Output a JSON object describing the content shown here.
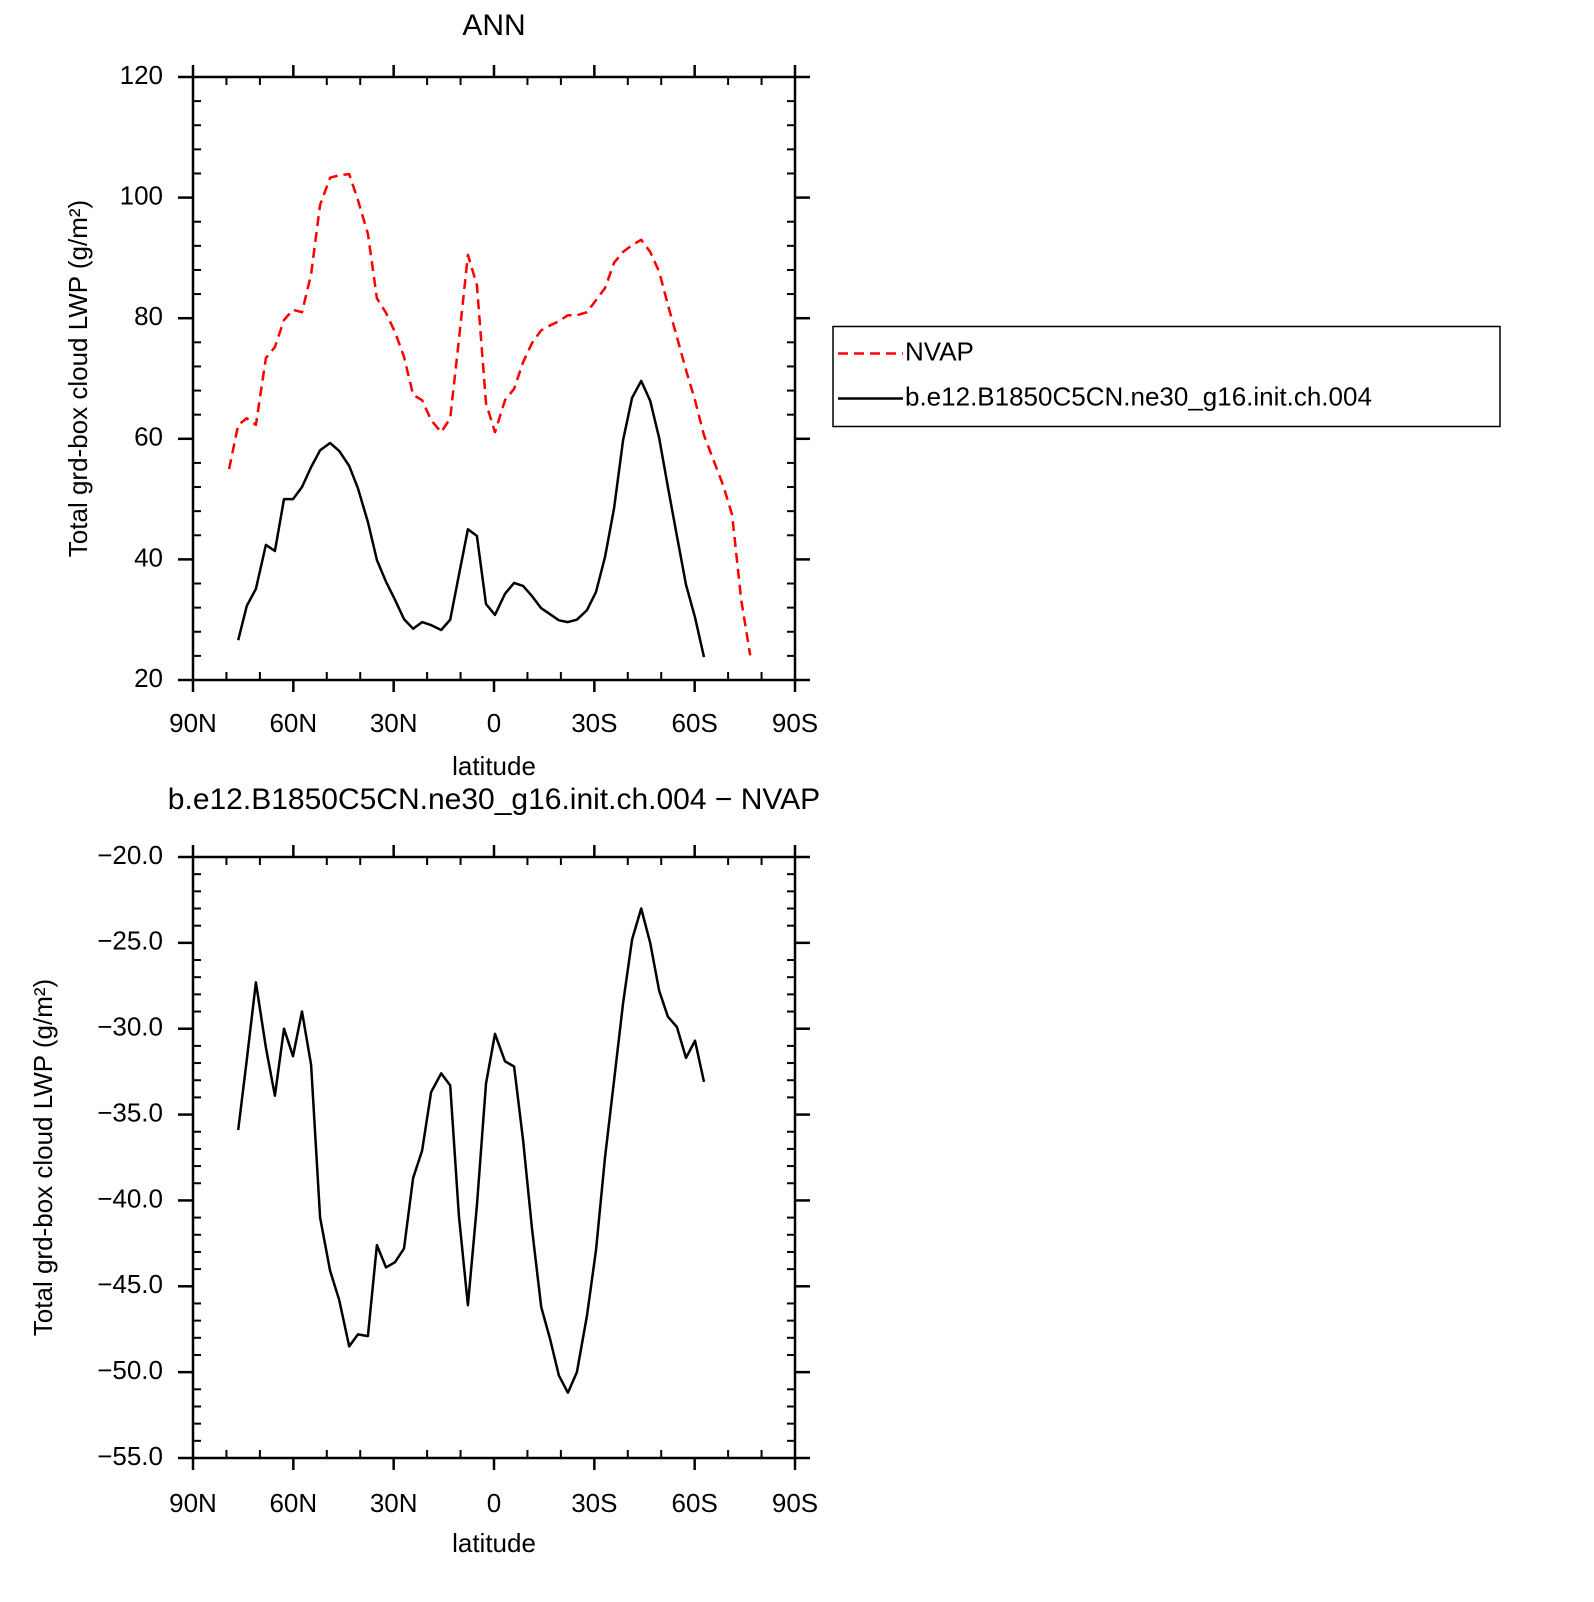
{
  "chart_data": [
    {
      "type": "line",
      "title": "ANN",
      "xlabel": "latitude",
      "ylabel": "Total grd-box cloud LWP (g/m²)",
      "x": [
        79.2,
        76.5,
        73.9,
        71.2,
        68.2,
        65.5,
        62.8,
        60.1,
        57.4,
        54.7,
        52.0,
        49.0,
        46.3,
        43.3,
        40.7,
        37.7,
        35.0,
        32.3,
        29.6,
        26.9,
        24.2,
        21.5,
        18.8,
        15.8,
        13.1,
        10.5,
        7.8,
        5.1,
        2.4,
        -0.3,
        -3.3,
        -6.0,
        -8.7,
        -11.4,
        -14.1,
        -16.8,
        -19.4,
        -22.1,
        -24.8,
        -27.8,
        -30.5,
        -33.2,
        -35.9,
        -38.6,
        -41.3,
        -44.0,
        -46.7,
        -49.4,
        -52.0,
        -54.7,
        -57.4,
        -60.1,
        -62.8,
        -65.8,
        -68.5,
        -71.2,
        -73.9,
        -76.6
      ],
      "series": [
        {
          "name": "NVAP",
          "color": "#ff0000",
          "line_style": "dashed",
          "values": [
            55.0,
            62.3,
            63.4,
            62.3,
            73.4,
            75.2,
            79.7,
            81.4,
            81.0,
            87.3,
            98.8,
            103.3,
            103.7,
            103.9,
            99.6,
            94.0,
            83.3,
            80.9,
            77.7,
            73.6,
            67.3,
            66.4,
            63.1,
            61.1,
            63.4,
            76.4,
            90.5,
            85.5,
            65.9,
            61.1,
            66.4,
            68.3,
            72.7,
            75.9,
            78.0,
            78.8,
            79.5,
            80.5,
            80.5,
            81.0,
            83.0,
            85.0,
            89.2,
            91.0,
            92.1,
            93.0,
            91.0,
            87.7,
            82.2,
            76.9,
            71.4,
            66.4,
            60.6,
            56.2,
            52.3,
            47.4,
            33.3,
            24.1
          ]
        },
        {
          "name": "b.e12.B1850C5CN.ne30_g16.init.ch.004",
          "color": "#000000",
          "line_style": "solid",
          "values": [
            null,
            26.6,
            32.3,
            35.1,
            42.4,
            41.4,
            50.0,
            50.0,
            52.0,
            55.3,
            58.1,
            59.3,
            58.0,
            55.5,
            51.8,
            46.2,
            39.9,
            36.3,
            33.3,
            30.1,
            28.5,
            29.6,
            29.1,
            28.3,
            30.0,
            37.4,
            45.0,
            43.9,
            32.6,
            30.8,
            34.3,
            36.1,
            35.6,
            33.9,
            31.9,
            30.9,
            29.9,
            29.6,
            30.0,
            31.6,
            34.6,
            40.4,
            48.5,
            59.8,
            66.8,
            69.6,
            66.3,
            60.1,
            52.0,
            43.9,
            35.8,
            30.4,
            23.8,
            null,
            null,
            null,
            null,
            null
          ]
        }
      ],
      "xlim": [
        90,
        -90
      ],
      "xticks": [
        {
          "value": 90,
          "label": "90N"
        },
        {
          "value": 60,
          "label": "60N"
        },
        {
          "value": 30,
          "label": "30N"
        },
        0,
        {
          "value": -30,
          "label": "30S"
        },
        {
          "value": -60,
          "label": "60S"
        },
        {
          "value": -90,
          "label": "90S"
        }
      ],
      "ylim": [
        20,
        120
      ],
      "yticks": [
        20,
        40,
        60,
        80,
        100,
        120
      ],
      "legend": "right"
    },
    {
      "type": "line",
      "title": "b.e12.B1850C5CN.ne30_g16.init.ch.004 − NVAP",
      "xlabel": "latitude",
      "ylabel": "Total grd-box cloud LWP (g/m²)",
      "x": [
        79.2,
        76.5,
        73.9,
        71.2,
        68.2,
        65.5,
        62.8,
        60.1,
        57.4,
        54.7,
        52.0,
        49.0,
        46.3,
        43.3,
        40.7,
        37.7,
        35.0,
        32.3,
        29.6,
        26.9,
        24.2,
        21.5,
        18.8,
        15.8,
        13.1,
        10.5,
        7.8,
        5.1,
        2.4,
        -0.3,
        -3.3,
        -6.0,
        -8.7,
        -11.4,
        -14.1,
        -16.8,
        -19.4,
        -22.1,
        -24.8,
        -27.8,
        -30.5,
        -33.2,
        -35.9,
        -38.6,
        -41.3,
        -44.0,
        -46.7,
        -49.4,
        -52.0,
        -54.7,
        -57.4,
        -60.1,
        -62.8,
        -65.8,
        -68.5,
        -71.2,
        -73.9,
        -76.6
      ],
      "series": [
        {
          "color": "#000000",
          "line_style": "solid",
          "values": [
            null,
            -35.9,
            -31.8,
            -27.3,
            -31.1,
            -33.9,
            -30.0,
            -31.6,
            -29.0,
            -32.1,
            -41.0,
            -44.1,
            -45.8,
            -48.5,
            -47.8,
            -47.9,
            -42.6,
            -43.9,
            -43.6,
            -42.8,
            -38.7,
            -37.1,
            -33.7,
            -32.6,
            -33.3,
            -40.9,
            -46.1,
            -40.3,
            -33.2,
            -30.3,
            -31.9,
            -32.2,
            -36.5,
            -41.7,
            -46.2,
            -48.1,
            -50.2,
            -51.2,
            -50.0,
            -46.7,
            -42.9,
            -37.5,
            -33.0,
            -28.5,
            -24.8,
            -23.0,
            -25.0,
            -27.8,
            -29.3,
            -29.9,
            -31.7,
            -30.7,
            -33.1,
            null,
            null,
            null,
            null,
            null
          ]
        }
      ],
      "xlim": [
        90,
        -90
      ],
      "xticks": [
        {
          "value": 90,
          "label": "90N"
        },
        {
          "value": 60,
          "label": "60N"
        },
        {
          "value": 30,
          "label": "30N"
        },
        0,
        {
          "value": -30,
          "label": "30S"
        },
        {
          "value": -60,
          "label": "60S"
        },
        {
          "value": -90,
          "label": "90S"
        }
      ],
      "ylim": [
        -55,
        -20
      ],
      "yticks": [
        {
          "value": -55,
          "label": "−55.0"
        },
        {
          "value": -50,
          "label": "−50.0"
        },
        {
          "value": -45,
          "label": "−45.0"
        },
        {
          "value": -40,
          "label": "−40.0"
        },
        {
          "value": -35,
          "label": "−35.0"
        },
        {
          "value": -30,
          "label": "−30.0"
        },
        {
          "value": -25,
          "label": "−25.0"
        },
        {
          "value": -20,
          "label": "−20.0"
        }
      ]
    }
  ]
}
